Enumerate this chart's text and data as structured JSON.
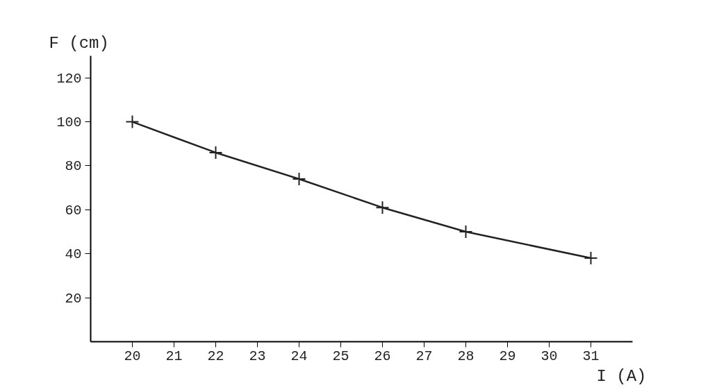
{
  "chart_data": {
    "type": "line",
    "xlabel": "I (A)",
    "ylabel": "F (cm)",
    "x": [
      20,
      22,
      24,
      26,
      28,
      31
    ],
    "series": [
      {
        "color": "#222222",
        "values": [
          100,
          86,
          74,
          61,
          50,
          38
        ]
      }
    ],
    "xlim": [
      19,
      32
    ],
    "ylim": [
      0,
      130
    ],
    "xticks": [
      20,
      21,
      22,
      23,
      24,
      25,
      26,
      27,
      28,
      29,
      30,
      31
    ],
    "yticks": [
      20,
      40,
      60,
      80,
      100,
      120
    ],
    "marker": "cross",
    "line_style": "solid",
    "grid": false
  }
}
